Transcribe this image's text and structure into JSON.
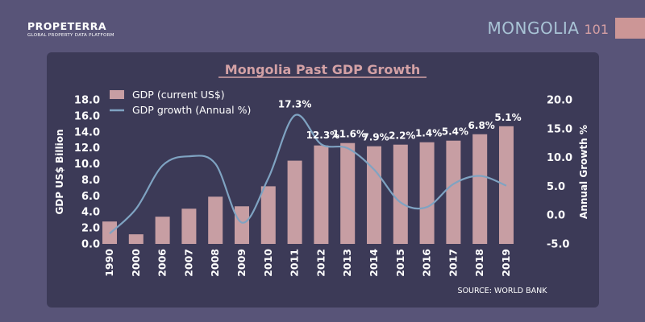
{
  "brand": {
    "name": "PROPETERRA",
    "tagline": "GLOBAL PROPERTY DATA PLATFORM"
  },
  "header": {
    "title": "MONGOLIA",
    "number": "101"
  },
  "source": "SOURCE: WORLD BANK",
  "colors": {
    "bar": "#c79ea3",
    "line": "#7fa3c2",
    "title": "#d3a1a5",
    "panel": "#3c3a57",
    "background": "#585478"
  },
  "chart_data": {
    "type": "bar+line",
    "title": "Mongolia Past GDP Growth",
    "categories": [
      "1990",
      "2000",
      "2006",
      "2007",
      "2008",
      "2009",
      "2010",
      "2011",
      "2012",
      "2013",
      "2014",
      "2015",
      "2016",
      "2017",
      "2018",
      "2019"
    ],
    "series": [
      {
        "name": "GDP (current US$)",
        "type": "bar",
        "axis": "left",
        "values": [
          2.8,
          1.2,
          3.4,
          4.4,
          5.9,
          4.7,
          7.2,
          10.4,
          12.3,
          12.6,
          12.2,
          12.4,
          12.7,
          12.9,
          13.7,
          14.7
        ]
      },
      {
        "name": "GDP growth (Annual %)",
        "type": "line",
        "axis": "right",
        "values": [
          -3.2,
          1.1,
          8.6,
          10.2,
          8.9,
          -1.3,
          6.4,
          17.3,
          12.3,
          11.6,
          7.9,
          2.2,
          1.4,
          5.4,
          6.8,
          5.1
        ],
        "labels": {
          "2011": "17.3%",
          "2012": "12.3%",
          "2013": "11.6%",
          "2014": "7.9%",
          "2015": "2.2%",
          "2016": "1.4%",
          "2017": "5.4%",
          "2018": "6.8%",
          "2019": "5.1%"
        }
      }
    ],
    "ylabel": "GDP US$ Billion",
    "y2label": "Annual Growth %",
    "ylim": [
      0,
      18
    ],
    "yticks": [
      "18.0",
      "16.0",
      "14.0",
      "12.0",
      "10.0",
      "8.0",
      "6.0",
      "4.0",
      "2.0",
      "0.0"
    ],
    "y2lim": [
      -5,
      20
    ],
    "y2ticks": [
      "20.0",
      "15.0",
      "10.0",
      "5.0",
      "0.0",
      "-5.0"
    ],
    "legend": "top-left"
  }
}
